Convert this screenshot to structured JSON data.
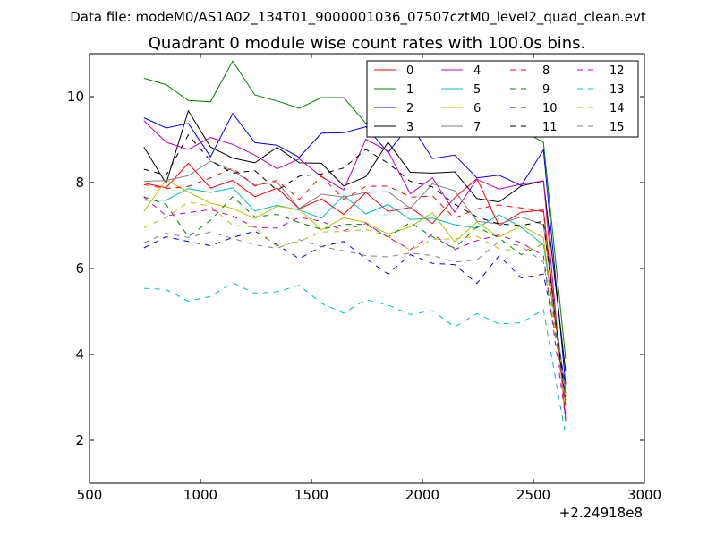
{
  "chart_data": {
    "type": "line",
    "suptitle": "Data file: modeM0/AS1A02_134T01_9000001036_07507cztM0_level2_quad_clean.evt",
    "title": "Quadrant 0 module wise count rates with 100.0s bins.",
    "xlabel": "",
    "ylabel": "",
    "x_offset_label": "+2.24918e8",
    "xlim": [
      500,
      3000
    ],
    "ylim": [
      1,
      11
    ],
    "xticks": [
      500,
      1000,
      1500,
      2000,
      2500,
      3000
    ],
    "xtick_labels": [
      "500",
      "1000",
      "1500",
      "2000",
      "2500",
      "3000"
    ],
    "yticks": [
      2,
      4,
      6,
      8,
      10
    ],
    "ytick_labels": [
      "2",
      "4",
      "6",
      "8",
      "10"
    ],
    "grid": false,
    "legend_position": "top-right",
    "legend_columns": 4,
    "x": [
      745,
      845,
      945,
      1045,
      1145,
      1245,
      1345,
      1445,
      1545,
      1645,
      1745,
      1845,
      1945,
      2045,
      2145,
      2245,
      2345,
      2445,
      2545,
      2645
    ],
    "series": [
      {
        "name": "0",
        "color": "#ff0000",
        "dash": "solid",
        "values": [
          7.99,
          7.88,
          8.45,
          7.87,
          8.05,
          7.67,
          7.87,
          7.39,
          7.62,
          7.26,
          7.77,
          7.33,
          7.42,
          7.05,
          7.65,
          8.09,
          7.0,
          7.31,
          7.36,
          2.8
        ]
      },
      {
        "name": "1",
        "color": "#008000",
        "dash": "solid",
        "values": [
          10.43,
          10.28,
          9.91,
          9.88,
          10.83,
          10.04,
          9.9,
          9.73,
          9.98,
          9.98,
          9.38,
          9.79,
          9.79,
          9.53,
          9.48,
          9.4,
          9.28,
          9.22,
          8.94,
          3.9
        ]
      },
      {
        "name": "2",
        "color": "#0000ff",
        "dash": "solid",
        "values": [
          9.51,
          9.27,
          9.38,
          8.6,
          9.61,
          8.93,
          8.87,
          8.59,
          9.15,
          9.16,
          9.3,
          8.7,
          9.36,
          8.56,
          8.64,
          8.11,
          8.17,
          7.93,
          8.76,
          3.3
        ]
      },
      {
        "name": "3",
        "color": "#000000",
        "dash": "solid",
        "values": [
          8.83,
          7.98,
          9.67,
          8.83,
          8.57,
          8.46,
          8.82,
          8.46,
          8.45,
          7.92,
          8.14,
          8.94,
          8.24,
          8.22,
          8.25,
          7.63,
          7.55,
          7.92,
          8.04,
          3.6
        ]
      },
      {
        "name": "4",
        "color": "#c000c0",
        "dash": "solid",
        "values": [
          9.44,
          8.94,
          8.77,
          9.05,
          8.89,
          8.64,
          8.32,
          8.55,
          8.14,
          7.83,
          9.01,
          8.73,
          7.74,
          8.11,
          7.31,
          8.08,
          7.85,
          7.96,
          8.04,
          2.45
        ]
      },
      {
        "name": "5",
        "color": "#00bfbf",
        "dash": "solid",
        "values": [
          7.59,
          7.59,
          7.86,
          7.77,
          7.88,
          7.34,
          7.47,
          7.36,
          7.17,
          7.7,
          7.27,
          7.49,
          7.14,
          7.17,
          7.02,
          6.94,
          7.25,
          6.96,
          6.55,
          3.2
        ]
      },
      {
        "name": "6",
        "color": "#bfbf00",
        "dash": "solid",
        "values": [
          7.33,
          8.06,
          7.78,
          7.52,
          7.4,
          7.16,
          7.45,
          7.38,
          6.9,
          7.18,
          7.07,
          6.8,
          6.97,
          7.3,
          6.62,
          7.08,
          6.73,
          7.0,
          6.72,
          3.0
        ]
      },
      {
        "name": "7",
        "color": "#808080",
        "dash": "solid",
        "values": [
          8.03,
          8.05,
          8.16,
          8.5,
          8.28,
          7.94,
          8.01,
          7.4,
          7.73,
          7.66,
          7.77,
          7.79,
          7.4,
          7.97,
          7.81,
          7.1,
          7.04,
          7.2,
          7.02,
          3.1
        ]
      },
      {
        "name": "8",
        "color": "#ff0000",
        "dash": "dashed",
        "values": [
          7.95,
          7.86,
          7.91,
          8.11,
          8.34,
          7.92,
          8.05,
          7.61,
          8.15,
          7.61,
          7.91,
          7.92,
          7.66,
          7.69,
          7.17,
          7.39,
          7.48,
          7.41,
          7.32,
          2.6
        ]
      },
      {
        "name": "9",
        "color": "#008000",
        "dash": "dashed",
        "values": [
          7.67,
          7.49,
          6.74,
          7.12,
          7.67,
          7.2,
          7.26,
          7.07,
          6.91,
          7.03,
          7.03,
          6.73,
          7.07,
          6.74,
          6.47,
          6.97,
          6.71,
          6.32,
          6.58,
          3.0
        ]
      },
      {
        "name": "10",
        "color": "#0000ff",
        "dash": "dashed",
        "values": [
          6.48,
          6.74,
          6.63,
          6.53,
          6.72,
          6.87,
          6.55,
          6.23,
          6.51,
          6.63,
          6.23,
          5.87,
          6.32,
          6.12,
          6.09,
          5.65,
          6.3,
          5.78,
          5.87,
          3.3
        ]
      },
      {
        "name": "11",
        "color": "#000000",
        "dash": "dashed",
        "values": [
          8.31,
          8.17,
          9.11,
          8.51,
          8.22,
          8.28,
          7.82,
          8.15,
          8.2,
          8.34,
          8.77,
          8.45,
          8.03,
          7.9,
          7.5,
          7.2,
          7.04,
          7.0,
          7.1,
          2.9
        ]
      },
      {
        "name": "12",
        "color": "#c000c0",
        "dash": "dashed",
        "values": [
          7.66,
          7.23,
          7.3,
          7.37,
          7.22,
          6.96,
          6.94,
          7.19,
          7.1,
          6.88,
          7.05,
          6.73,
          6.44,
          6.8,
          6.44,
          6.65,
          6.78,
          6.6,
          6.3,
          2.5
        ]
      },
      {
        "name": "13",
        "color": "#00bfbf",
        "dash": "dashed",
        "values": [
          5.54,
          5.51,
          5.24,
          5.35,
          5.67,
          5.42,
          5.46,
          5.61,
          5.19,
          4.96,
          5.28,
          5.15,
          4.93,
          5.02,
          4.64,
          4.95,
          4.71,
          4.74,
          5.04,
          2.1
        ]
      },
      {
        "name": "14",
        "color": "#bfbf00",
        "dash": "dashed",
        "values": [
          6.95,
          7.19,
          7.55,
          7.45,
          7.01,
          6.96,
          6.5,
          6.63,
          6.85,
          6.86,
          6.91,
          6.75,
          6.42,
          6.68,
          6.69,
          6.75,
          6.46,
          6.4,
          6.56,
          2.7
        ]
      },
      {
        "name": "15",
        "color": "#808080",
        "dash": "dashed",
        "values": [
          6.6,
          6.82,
          6.72,
          6.85,
          6.7,
          6.55,
          6.47,
          6.67,
          6.51,
          6.41,
          6.3,
          6.27,
          6.36,
          6.3,
          6.15,
          6.2,
          6.63,
          6.52,
          6.15,
          2.9
        ]
      }
    ]
  }
}
